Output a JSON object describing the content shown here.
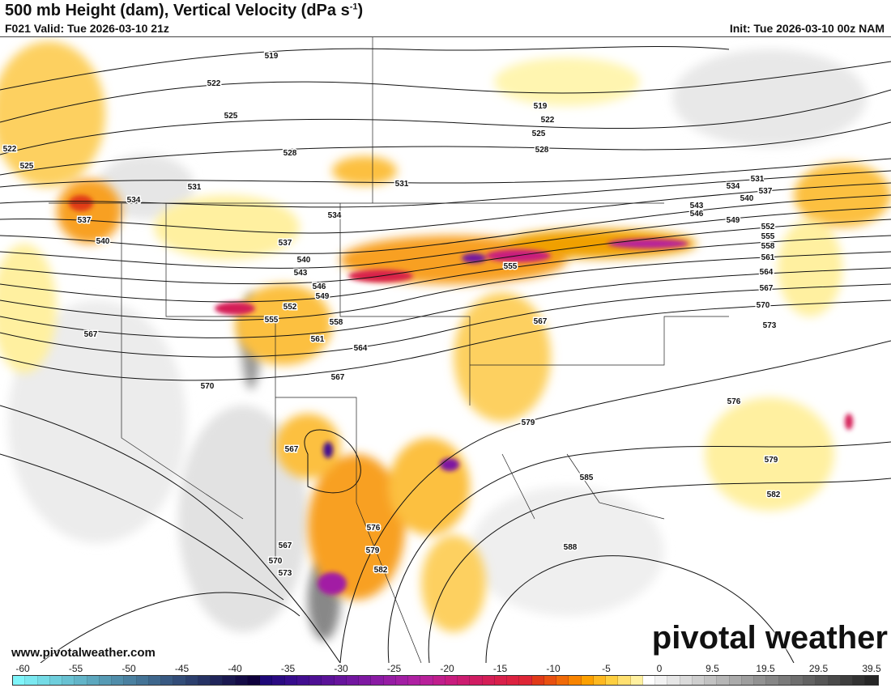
{
  "header": {
    "title": "500 mb Height (dam), Vertical Velocity (dPa s",
    "title_sup": "-1",
    "title_end": ")",
    "valid": "F021 Valid: Tue 2026-03-10 21z",
    "init": "Init: Tue 2026-03-10 00z NAM"
  },
  "footer": {
    "website": "www.pivotalweather.com",
    "brand": "pivotal weather"
  },
  "colorbar": {
    "labels": [
      "-60",
      "-55",
      "-50",
      "-45",
      "-40",
      "-35",
      "-30",
      "-25",
      "-20",
      "-15",
      "-10",
      "-5",
      "0",
      "9.5",
      "19.5",
      "29.5",
      "39.5"
    ],
    "colors": [
      "#7ff5fa",
      "#7ae8f0",
      "#74dbe6",
      "#6ecedc",
      "#68c1d2",
      "#62b4c8",
      "#5ca7be",
      "#569ab4",
      "#508daa",
      "#4a80a0",
      "#447396",
      "#3e668c",
      "#385982",
      "#324c78",
      "#2c3f6e",
      "#263264",
      "#20255a",
      "#1a1850",
      "#140b46",
      "#0e003c",
      "#1e0878",
      "#2a0a82",
      "#360c8c",
      "#420e90",
      "#4e1094",
      "#5a1298",
      "#66149c",
      "#7216a0",
      "#7e18a2",
      "#8a1aa4",
      "#961ca4",
      "#a21ea4",
      "#ae20a2",
      "#b8209a",
      "#c01e8c",
      "#c81c7e",
      "#cc1c70",
      "#d01c62",
      "#d41e56",
      "#d8204a",
      "#dc2240",
      "#de2636",
      "#e03a18",
      "#e85010",
      "#f06a08",
      "#f88400",
      "#fca000",
      "#feb820",
      "#fecf40",
      "#ffe070",
      "#fff0a0",
      "#ffffff",
      "#f2f2f2",
      "#e6e6e6",
      "#dadada",
      "#cecece",
      "#c2c2c2",
      "#b6b6b6",
      "#aaaaaa",
      "#9e9e9e",
      "#929292",
      "#868686",
      "#7a7a7a",
      "#6e6e6e",
      "#626262",
      "#565656",
      "#4a4a4a",
      "#3e3e3e",
      "#323232",
      "#262626"
    ]
  },
  "contours": [
    "519",
    "522",
    "525",
    "528",
    "531",
    "534",
    "537",
    "540",
    "534",
    "537",
    "540",
    "543",
    "546",
    "549",
    "552",
    "555",
    "558",
    "561",
    "564",
    "567",
    "570",
    "567",
    "519",
    "522",
    "525",
    "528",
    "531",
    "531",
    "534",
    "537",
    "540",
    "543",
    "546",
    "549",
    "552",
    "555",
    "558",
    "561",
    "564",
    "567",
    "570",
    "573",
    "576",
    "579",
    "579",
    "582",
    "585",
    "588",
    "567",
    "567",
    "570",
    "573",
    "576",
    "579",
    "582",
    "555",
    "567",
    "522",
    "525"
  ]
}
